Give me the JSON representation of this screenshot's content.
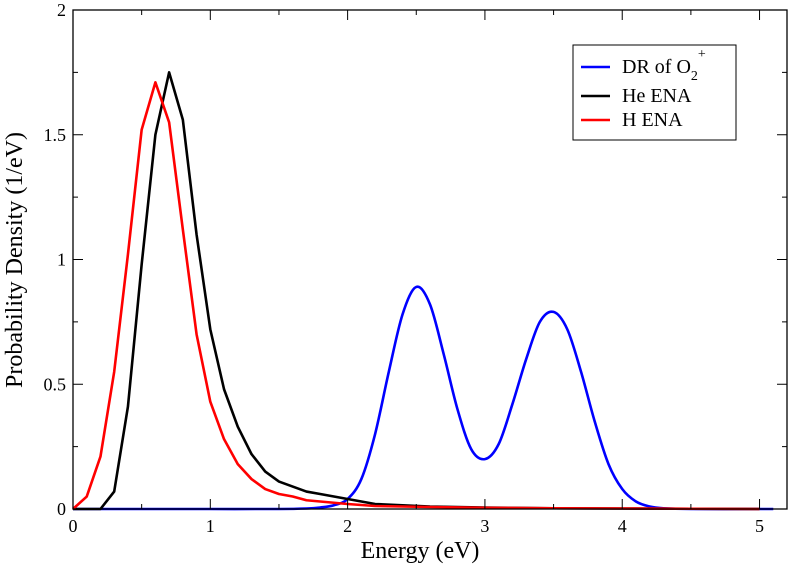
{
  "chart_data": {
    "type": "line",
    "title": "",
    "xlabel": "Energy (eV)",
    "ylabel": "Probability Density (1/eV)",
    "xlim": [
      0,
      5.2
    ],
    "ylim": [
      0,
      2
    ],
    "xticks": [
      0,
      1,
      2,
      3,
      4,
      5
    ],
    "xtick_labels": [
      "0",
      "1",
      "2",
      "3",
      "4",
      "5"
    ],
    "yticks": [
      0,
      0.5,
      1,
      1.5,
      2
    ],
    "ytick_labels": [
      "0",
      "0.5",
      "1",
      "1.5",
      "2"
    ],
    "grid": false,
    "legend_position": "top-right",
    "series": [
      {
        "name": "DR of O2+",
        "legend_main": "DR of O",
        "legend_sub": "2",
        "legend_sup": "+",
        "color": "#0000ff",
        "smooth": true,
        "x": [
          0,
          0.5,
          1.0,
          1.5,
          1.7,
          1.8,
          1.9,
          2.0,
          2.1,
          2.2,
          2.3,
          2.4,
          2.5,
          2.6,
          2.7,
          2.8,
          2.9,
          3.0,
          3.1,
          3.2,
          3.3,
          3.4,
          3.5,
          3.6,
          3.7,
          3.8,
          3.9,
          4.0,
          4.1,
          4.2,
          4.3,
          4.5,
          5.0,
          5.1
        ],
        "y": [
          0,
          0,
          0,
          0,
          0.002,
          0.006,
          0.015,
          0.04,
          0.12,
          0.3,
          0.55,
          0.78,
          0.89,
          0.82,
          0.62,
          0.4,
          0.24,
          0.2,
          0.26,
          0.42,
          0.6,
          0.75,
          0.79,
          0.72,
          0.55,
          0.35,
          0.18,
          0.08,
          0.03,
          0.01,
          0.003,
          0,
          0,
          0
        ]
      },
      {
        "name": "He ENA",
        "color": "#000000",
        "smooth": false,
        "x": [
          0,
          0.1,
          0.2,
          0.3,
          0.4,
          0.5,
          0.6,
          0.7,
          0.8,
          0.9,
          1.0,
          1.1,
          1.2,
          1.3,
          1.4,
          1.5,
          1.6,
          1.7,
          1.8,
          1.9,
          2.0,
          2.2,
          2.4,
          2.6,
          3.0,
          3.5,
          4.0,
          4.5,
          5.0
        ],
        "y": [
          0,
          0,
          0,
          0.07,
          0.41,
          0.98,
          1.5,
          1.75,
          1.56,
          1.1,
          0.72,
          0.48,
          0.33,
          0.22,
          0.15,
          0.11,
          0.09,
          0.07,
          0.06,
          0.05,
          0.04,
          0.02,
          0.015,
          0.01,
          0.006,
          0.003,
          0.002,
          0.001,
          0
        ]
      },
      {
        "name": "H ENA",
        "color": "#ff0000",
        "smooth": false,
        "x": [
          0,
          0.1,
          0.2,
          0.3,
          0.4,
          0.5,
          0.6,
          0.7,
          0.8,
          0.9,
          1.0,
          1.1,
          1.2,
          1.3,
          1.4,
          1.5,
          1.6,
          1.7,
          1.8,
          2.0,
          2.2,
          2.4,
          2.6,
          3.0,
          3.5,
          4.0,
          4.5,
          5.0
        ],
        "y": [
          0,
          0.05,
          0.21,
          0.55,
          1.02,
          1.52,
          1.71,
          1.55,
          1.12,
          0.7,
          0.43,
          0.28,
          0.18,
          0.12,
          0.08,
          0.06,
          0.05,
          0.035,
          0.03,
          0.02,
          0.012,
          0.01,
          0.008,
          0.005,
          0.003,
          0.002,
          0.001,
          0
        ]
      }
    ]
  }
}
